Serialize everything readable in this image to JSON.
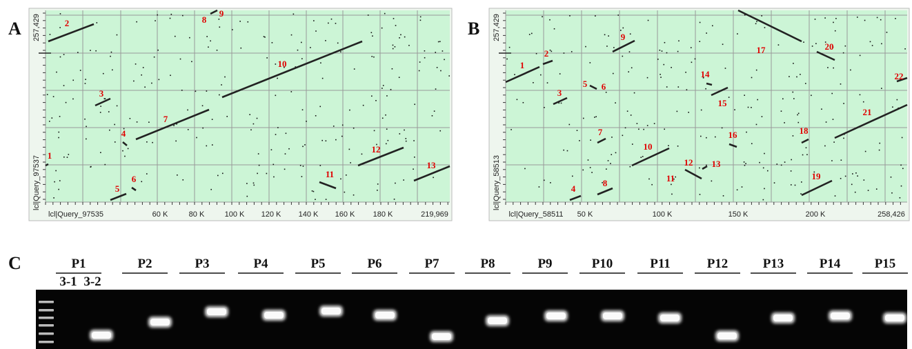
{
  "panels": [
    {
      "letter": "A",
      "y_top_label": "257,429",
      "y_axis_label": "lcl|Query_97537",
      "x_axis_label": "lcl|Query_97535",
      "x_ticks": [
        "60 K",
        "80 K",
        "100 K",
        "120 K",
        "140 K",
        "160 K",
        "180 K",
        "219,969"
      ],
      "segment_labels": [
        "1",
        "2",
        "3",
        "4",
        "5",
        "6",
        "7",
        "8",
        "9",
        "10",
        "11",
        "12",
        "13"
      ]
    },
    {
      "letter": "B",
      "y_top_label": "257,429",
      "y_axis_label": "lcl|Query_58513",
      "x_axis_label": "lcl|Query_58511",
      "x_ticks": [
        "50 K",
        "100 K",
        "150 K",
        "200 K",
        "258,426"
      ],
      "segment_labels": [
        "1",
        "2",
        "3",
        "4",
        "5",
        "6",
        "7",
        "8",
        "9",
        "10",
        "11",
        "12",
        "13",
        "14",
        "15",
        "16",
        "17",
        "18",
        "19",
        "20",
        "21",
        "22"
      ]
    }
  ],
  "gel": {
    "letter": "C",
    "lanes": [
      "P1",
      "P2",
      "P3",
      "P4",
      "P5",
      "P6",
      "P7",
      "P8",
      "P9",
      "P10",
      "P11",
      "P12",
      "P13",
      "P14",
      "P15"
    ],
    "sublanes": [
      "3-1",
      "3-2"
    ]
  }
}
